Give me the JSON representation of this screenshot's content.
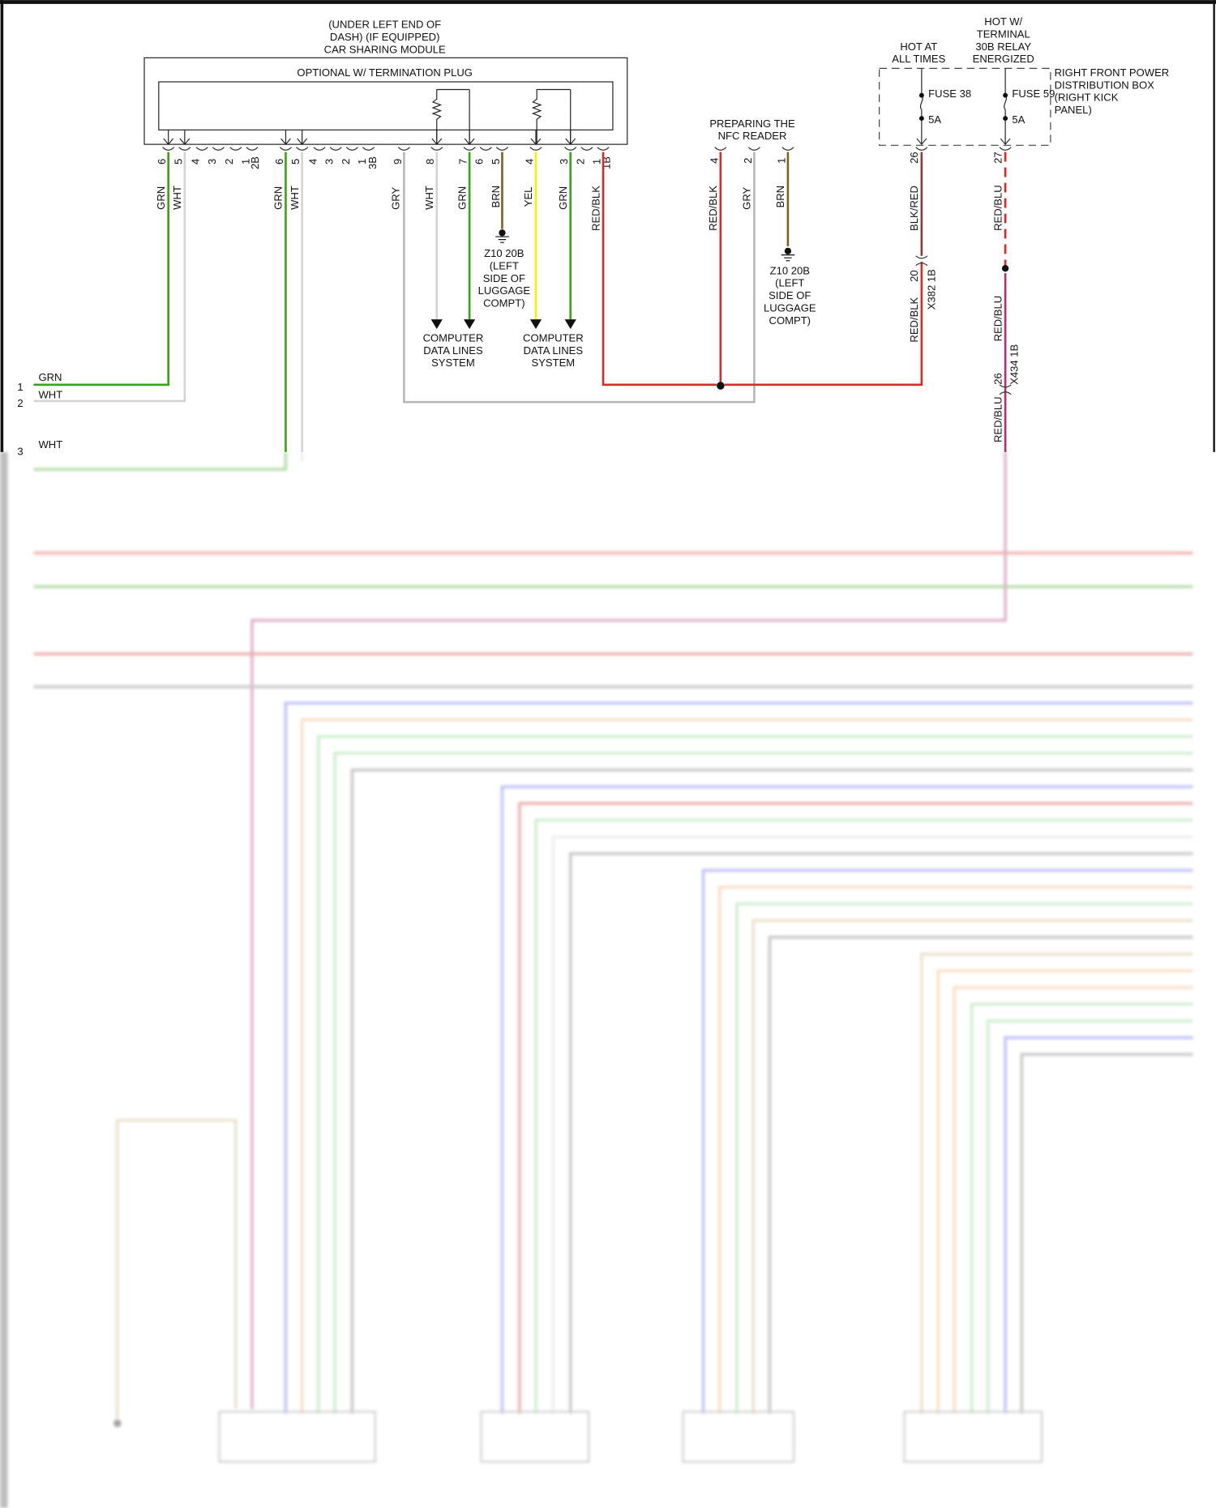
{
  "colors": {
    "GRN": "#3aa315",
    "WHT": "#d4d4d4",
    "GRY": "#b8b8b8",
    "BRN": "#7a6420",
    "YEL": "#f2f200",
    "RED": "#d42a2a",
    "BLKRED": "#8a3a3a",
    "REDBLU": "#a8356e",
    "BLU": "#5a5aff",
    "ORG": "#f4a766",
    "LGRN": "#7fd27f",
    "DGRY": "#707070",
    "BGE": "#c8b27a"
  },
  "module": {
    "title": [
      "(UNDER LEFT END OF",
      "DASH) (IF EQUIPPED)",
      "CAR SHARING MODULE"
    ],
    "inner_label": "OPTIONAL W/ TERMINATION PLUG",
    "pins": [
      "6",
      "5",
      "4",
      "3",
      "2",
      "1",
      "2B",
      "6",
      "5",
      "4",
      "3",
      "2",
      "1",
      "3B",
      "9",
      "8",
      "7",
      "6",
      "5",
      "4",
      "3",
      "2",
      "1",
      "1B"
    ]
  },
  "wires": {
    "grn1": "GRN",
    "wht1": "WHT",
    "grn2": "GRN",
    "wht2": "WHT",
    "gry": "GRY",
    "wht3": "WHT",
    "grn3": "GRN",
    "brn": "BRN",
    "yel": "YEL",
    "grn4": "GRN",
    "redblk": "RED/BLK",
    "nfc_redblk": "RED/BLK",
    "nfc_gry": "GRY",
    "nfc_brn": "BRN",
    "blkred": "BLK/RED",
    "redblu1": "RED/BLU",
    "redblk2": "RED/BLK",
    "redblu2": "RED/BLU",
    "redblu3": "RED/BLU"
  },
  "ground": {
    "lines": [
      "Z10 20B",
      "(LEFT",
      "SIDE OF",
      "LUGGAGE",
      "COMPT)"
    ]
  },
  "data_lines": {
    "lines": [
      "COMPUTER",
      "DATA LINES",
      "SYSTEM"
    ]
  },
  "nfc": {
    "title": [
      "PREPARING THE",
      "NFC READER"
    ],
    "pins": [
      "4",
      "2",
      "1"
    ]
  },
  "power": {
    "hot_all": [
      "HOT AT",
      "ALL TIMES"
    ],
    "hot_relay": [
      "HOT W/",
      "TERMINAL",
      "30B RELAY",
      "ENERGIZED"
    ],
    "box": [
      "RIGHT FRONT POWER",
      "DISTRIBUTION BOX",
      "(RIGHT KICK",
      "PANEL)"
    ],
    "fuse38": "FUSE 38",
    "fuse59": "FUSE 59",
    "amp1": "5A",
    "amp2": "5A",
    "pin26": "26",
    "pin27": "27"
  },
  "connectors": {
    "x382_pin": "20",
    "x382": "X382 1B",
    "x434_pin": "26",
    "x434": "X434 1B"
  },
  "left_pins": {
    "p1": "1",
    "p2": "2",
    "p3": "3",
    "grn": "GRN",
    "wht": "WHT",
    "wht2": "WHT"
  }
}
